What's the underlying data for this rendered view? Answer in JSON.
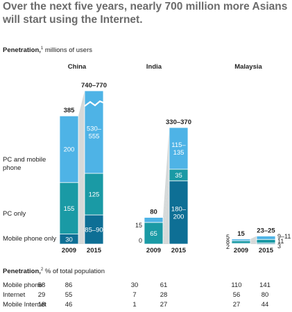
{
  "header": {
    "title": "Over the next five years, nearly 700 million more Asians will start using the Internet.",
    "subtitle_bold": "Penetration,",
    "subtitle_sup": "1",
    "subtitle_rest": "millions of users"
  },
  "segment_labels": [
    "PC and mobile phone",
    "PC only",
    "Mobile phone only"
  ],
  "colors": {
    "pc_and_mobile": "#4eb3e6",
    "pc_only": "#1a9aa5",
    "mobile_only": "#0e6f95",
    "connector": "#d5d9d9",
    "title": "#6b6b6b"
  },
  "chart_data": [
    {
      "type": "bar",
      "title": "China",
      "stacking": "stacked",
      "categories": [
        "2009",
        "2015"
      ],
      "series": [
        {
          "name": "Mobile phone only",
          "values": [
            30,
            87.5
          ],
          "labels": [
            "30",
            "85–90"
          ]
        },
        {
          "name": "PC only",
          "values": [
            155,
            125
          ],
          "labels": [
            "155",
            "125"
          ]
        },
        {
          "name": "PC and mobile phone",
          "values": [
            200,
            542.5
          ],
          "labels": [
            "200",
            "530–555"
          ]
        }
      ],
      "totals": [
        "385",
        "740–770"
      ],
      "axis_break_on": "2015"
    },
    {
      "type": "bar",
      "title": "India",
      "stacking": "stacked",
      "categories": [
        "2009",
        "2015"
      ],
      "series": [
        {
          "name": "Mobile phone only",
          "values": [
            0,
            190
          ],
          "labels": [
            "0",
            "180–200"
          ]
        },
        {
          "name": "PC only",
          "values": [
            65,
            35
          ],
          "labels": [
            "65",
            "35"
          ]
        },
        {
          "name": "PC and mobile phone",
          "values": [
            15,
            125
          ],
          "labels": [
            "15",
            "115–135"
          ]
        }
      ],
      "totals": [
        "80",
        "330–370"
      ]
    },
    {
      "type": "bar",
      "title": "Malaysia",
      "stacking": "stacked",
      "categories": [
        "2009",
        "2015"
      ],
      "series": [
        {
          "name": "Mobile phone only",
          "values": [
            2,
            3
          ],
          "labels": [
            "2",
            "3"
          ]
        },
        {
          "name": "PC only",
          "values": [
            8,
            11
          ],
          "labels": [
            "8",
            "11"
          ]
        },
        {
          "name": "PC and mobile phone",
          "values": [
            5,
            10
          ],
          "labels": [
            "5",
            "9–11"
          ]
        }
      ],
      "totals": [
        "15",
        "23–25"
      ]
    }
  ],
  "penetration_table": {
    "title_bold": "Penetration,",
    "title_sup": "2",
    "title_rest": "% of total population",
    "rows": [
      {
        "label": "Mobile phone",
        "values": [
          "58",
          "86",
          "30",
          "61",
          "110",
          "141"
        ]
      },
      {
        "label": "Internet",
        "values": [
          "29",
          "55",
          "7",
          "28",
          "56",
          "80"
        ]
      },
      {
        "label": "Mobile Internet",
        "values": [
          "18",
          "46",
          "1",
          "27",
          "27",
          "44"
        ]
      }
    ]
  }
}
